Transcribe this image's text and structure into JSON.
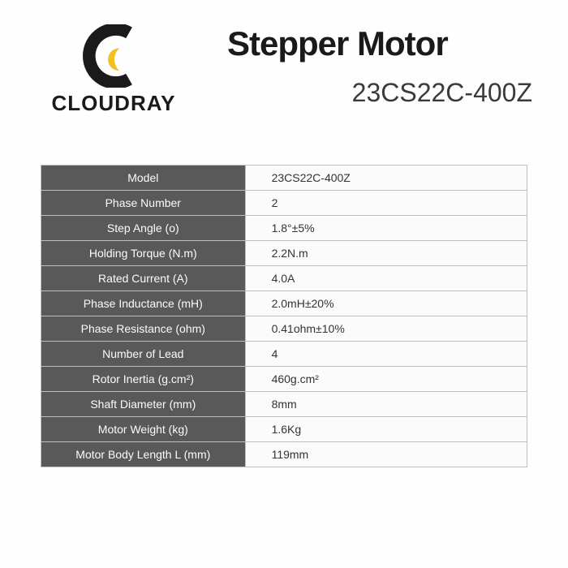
{
  "brand": {
    "name": "CLOUDRAY",
    "logo_colors": {
      "dark": "#1a1a1a",
      "accent": "#f2c01f"
    }
  },
  "header": {
    "title": "Stepper Motor",
    "model": "23CS22C-400Z"
  },
  "table": {
    "label_bg": "#595959",
    "label_fg": "#fbfbfb",
    "value_bg": "#fbfbfb",
    "value_fg": "#333333",
    "border_color": "#bfbfbf",
    "label_fontsize": 14,
    "value_fontsize": 14,
    "rows": [
      {
        "label": "Model",
        "value": "23CS22C-400Z"
      },
      {
        "label": "Phase Number",
        "value": "2"
      },
      {
        "label": "Step Angle (o)",
        "value": "1.8°±5%"
      },
      {
        "label": "Holding Torque (N.m)",
        "value": "2.2N.m"
      },
      {
        "label": "Rated Current (A)",
        "value": "4.0A"
      },
      {
        "label": "Phase Inductance (mH)",
        "value": "2.0mH±20%"
      },
      {
        "label": "Phase Resistance (ohm)",
        "value": "0.41ohm±10%"
      },
      {
        "label": "Number of Lead",
        "value": "4"
      },
      {
        "label": "Rotor Inertia (g.cm²)",
        "value": "460g.cm²"
      },
      {
        "label": "Shaft Diameter (mm)",
        "value": "8mm"
      },
      {
        "label": "Motor Weight (kg)",
        "value": "1.6Kg"
      },
      {
        "label": "Motor Body Length L (mm)",
        "value": "119mm"
      }
    ]
  }
}
